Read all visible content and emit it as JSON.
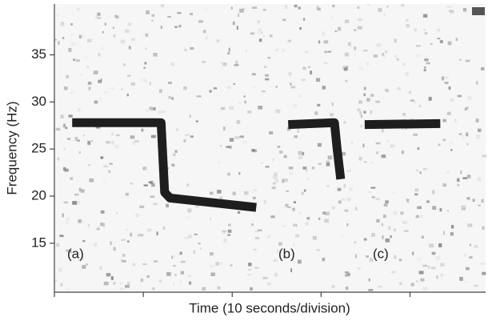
{
  "chart_data": {
    "type": "line",
    "x_label": "Time (10 seconds/division)",
    "y_label": "Frequency (Hz)",
    "xlim": [
      0,
      48.5
    ],
    "xticks": [
      0,
      10,
      20,
      30,
      40
    ],
    "ylim": [
      9.8,
      40.4
    ],
    "yticks": [
      15,
      20,
      25,
      30,
      35
    ],
    "series": [
      {
        "color": "#1e1e1e",
        "x": [
          2,
          12,
          12.4,
          13,
          22.7
        ],
        "values": [
          27.8,
          27.8,
          20.4,
          19.8,
          18.8
        ]
      },
      {
        "color": "#1e1e1e",
        "x": [
          26.3,
          31.5,
          31.8,
          32.2
        ],
        "values": [
          27.6,
          27.8,
          25,
          21.8
        ]
      },
      {
        "color": "#1e1e1e",
        "x": [
          34.9,
          43.4
        ],
        "values": [
          27.6,
          27.7
        ]
      }
    ],
    "annotations": [
      "(a)",
      "(b)",
      "(c)"
    ]
  }
}
